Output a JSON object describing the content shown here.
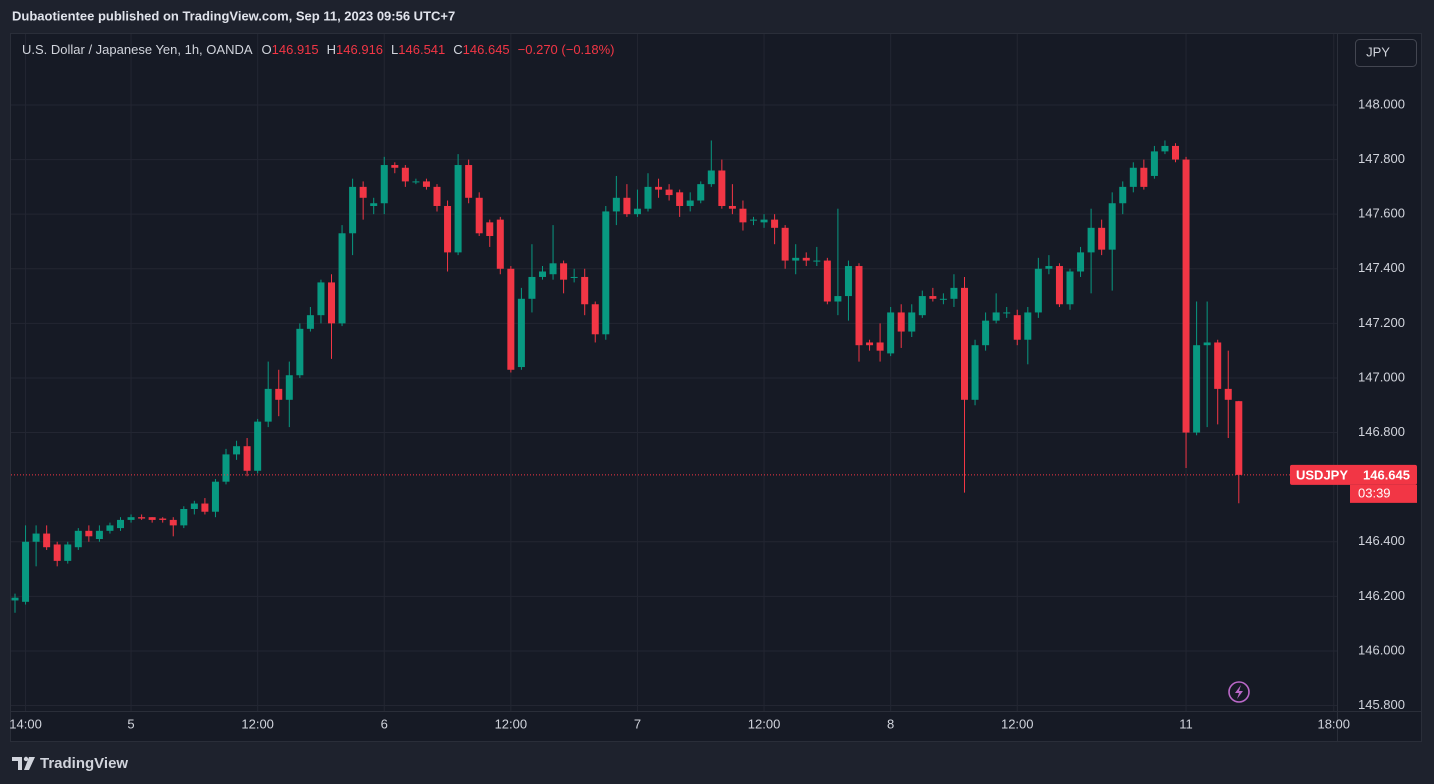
{
  "header": {
    "publisher": "Dubaotientee published on TradingView.com, Sep 11, 2023 09:56 UTC+7"
  },
  "legend": {
    "symbol": "U.S. Dollar / Japanese Yen, 1h, OANDA",
    "labels": [
      "O",
      "H",
      "L",
      "C"
    ],
    "change": "−0.270 (−0.18%)"
  },
  "currency_button": "JPY",
  "price_tag": {
    "symbol": "USDJPY",
    "countdown": "03:39"
  },
  "footer": {
    "brand": "TradingView"
  },
  "chart_data": {
    "type": "candlestick",
    "up_color": "#089981",
    "down_color": "#f23645",
    "grid": true,
    "open": [
      146.185,
      146.18,
      146.4,
      146.43,
      146.39,
      146.33,
      146.38,
      146.44,
      146.41,
      146.44,
      146.45,
      146.48,
      146.49,
      146.49,
      146.485,
      146.48,
      146.46,
      146.52,
      146.54,
      146.51,
      146.62,
      146.72,
      146.75,
      146.66,
      146.84,
      146.96,
      146.92,
      147.01,
      147.18,
      147.23,
      147.35,
      147.2,
      147.53,
      147.7,
      147.63,
      147.64,
      147.78,
      147.77,
      147.72,
      147.72,
      147.7,
      147.63,
      147.46,
      147.78,
      147.66,
      147.57,
      147.58,
      147.4,
      147.04,
      147.29,
      147.37,
      147.38,
      147.42,
      147.37,
      147.37,
      147.27,
      147.16,
      147.61,
      147.66,
      147.6,
      147.62,
      147.7,
      147.69,
      147.68,
      147.63,
      147.65,
      147.71,
      147.76,
      147.63,
      147.62,
      147.58,
      147.57,
      147.58,
      147.55,
      147.43,
      147.44,
      147.43,
      147.43,
      147.28,
      147.3,
      147.41,
      147.13,
      147.13,
      147.09,
      147.24,
      147.17,
      147.23,
      147.3,
      147.29,
      147.29,
      147.33,
      146.92,
      147.12,
      147.21,
      147.24,
      147.23,
      147.14,
      147.24,
      147.4,
      147.41,
      147.27,
      147.39,
      147.46,
      147.55,
      147.47,
      147.64,
      147.7,
      147.77,
      147.74,
      147.83,
      147.85,
      147.8,
      146.8,
      147.12,
      147.13,
      146.96,
      146.915
    ],
    "high": [
      146.21,
      146.46,
      146.46,
      146.46,
      146.4,
      146.4,
      146.45,
      146.46,
      146.46,
      146.47,
      146.49,
      146.5,
      146.5,
      146.49,
      146.49,
      146.49,
      146.53,
      146.55,
      146.56,
      146.63,
      146.74,
      146.77,
      146.78,
      146.85,
      147.06,
      147.03,
      147.06,
      147.2,
      147.26,
      147.36,
      147.38,
      147.56,
      147.73,
      147.72,
      147.66,
      147.81,
      147.79,
      147.78,
      147.73,
      147.73,
      147.71,
      147.65,
      147.82,
      147.8,
      147.68,
      147.58,
      147.59,
      147.41,
      147.33,
      147.49,
      147.41,
      147.56,
      147.43,
      147.4,
      147.4,
      147.28,
      147.63,
      147.74,
      147.71,
      147.69,
      147.75,
      147.73,
      147.71,
      147.69,
      147.68,
      147.72,
      147.87,
      147.8,
      147.71,
      147.65,
      147.59,
      147.6,
      147.6,
      147.56,
      147.49,
      147.46,
      147.48,
      147.44,
      147.62,
      147.43,
      147.42,
      147.14,
      147.2,
      147.26,
      147.27,
      147.27,
      147.32,
      147.33,
      147.31,
      147.38,
      147.37,
      147.14,
      147.24,
      147.31,
      147.26,
      147.25,
      147.26,
      147.44,
      147.45,
      147.42,
      147.4,
      147.48,
      147.62,
      147.58,
      147.68,
      147.72,
      147.79,
      147.8,
      147.85,
      147.87,
      147.86,
      147.81,
      147.28,
      147.28,
      147.14,
      147.1,
      146.916
    ],
    "low": [
      146.14,
      146.17,
      146.31,
      146.37,
      146.31,
      146.32,
      146.37,
      146.4,
      146.4,
      146.43,
      146.44,
      146.47,
      146.48,
      146.47,
      146.47,
      146.42,
      146.45,
      146.5,
      146.5,
      146.49,
      146.61,
      146.7,
      146.64,
      146.65,
      146.82,
      146.86,
      146.82,
      147.0,
      147.17,
      147.2,
      147.07,
      147.19,
      147.45,
      147.58,
      147.6,
      147.6,
      147.75,
      147.7,
      147.71,
      147.69,
      147.61,
      147.39,
      147.45,
      147.64,
      147.52,
      147.48,
      147.38,
      147.02,
      147.03,
      147.24,
      147.36,
      147.36,
      147.31,
      147.35,
      147.23,
      147.13,
      147.14,
      147.56,
      147.59,
      147.59,
      147.61,
      147.66,
      147.65,
      147.59,
      147.61,
      147.64,
      147.7,
      147.62,
      147.6,
      147.54,
      147.56,
      147.55,
      147.49,
      147.4,
      147.38,
      147.41,
      147.41,
      147.27,
      147.23,
      147.21,
      147.06,
      147.1,
      147.06,
      147.08,
      147.11,
      147.15,
      147.22,
      147.28,
      147.27,
      147.26,
      146.58,
      146.9,
      147.1,
      147.2,
      147.22,
      147.12,
      147.05,
      147.22,
      147.38,
      147.26,
      147.25,
      147.37,
      147.31,
      147.45,
      147.32,
      147.6,
      147.68,
      147.69,
      147.73,
      147.82,
      147.79,
      146.67,
      146.79,
      146.82,
      146.83,
      146.78,
      146.541
    ],
    "close": [
      146.195,
      146.4,
      146.43,
      146.38,
      146.33,
      146.39,
      146.44,
      146.42,
      146.44,
      146.46,
      146.48,
      146.49,
      146.485,
      146.48,
      146.48,
      146.46,
      146.52,
      146.54,
      146.51,
      146.62,
      146.72,
      146.75,
      146.66,
      146.84,
      146.96,
      146.92,
      147.01,
      147.18,
      147.23,
      147.35,
      147.2,
      147.53,
      147.7,
      147.66,
      147.64,
      147.78,
      147.77,
      147.72,
      147.72,
      147.7,
      147.63,
      147.46,
      147.78,
      147.66,
      147.53,
      147.52,
      147.4,
      147.03,
      147.29,
      147.37,
      147.39,
      147.42,
      147.36,
      147.37,
      147.27,
      147.16,
      147.61,
      147.66,
      147.6,
      147.62,
      147.7,
      147.69,
      147.67,
      147.63,
      147.65,
      147.71,
      147.76,
      147.63,
      147.62,
      147.57,
      147.58,
      147.58,
      147.55,
      147.43,
      147.44,
      147.43,
      147.43,
      147.28,
      147.3,
      147.41,
      147.12,
      147.12,
      147.1,
      147.24,
      147.17,
      147.24,
      147.3,
      147.29,
      147.29,
      147.33,
      146.92,
      147.12,
      147.21,
      147.24,
      147.24,
      147.14,
      147.24,
      147.4,
      147.41,
      147.27,
      147.39,
      147.46,
      147.55,
      147.47,
      147.64,
      147.7,
      147.77,
      147.7,
      147.83,
      147.85,
      147.8,
      146.8,
      147.12,
      147.13,
      146.96,
      146.92,
      146.645
    ],
    "ylim": [
      145.78,
      148.26
    ],
    "yticks": [
      {
        "value": 145.8,
        "label": "145.800"
      },
      {
        "value": 146,
        "label": "146.000"
      },
      {
        "value": 146.2,
        "label": "146.200"
      },
      {
        "value": 146.4,
        "label": "146.400"
      },
      {
        "value": 146.8,
        "label": "146.800"
      },
      {
        "value": 147,
        "label": "147.000"
      },
      {
        "value": 147.2,
        "label": "147.200"
      },
      {
        "value": 147.4,
        "label": "147.400"
      },
      {
        "value": 147.6,
        "label": "147.600"
      },
      {
        "value": 147.8,
        "label": "147.800"
      },
      {
        "value": 148,
        "label": "148.000"
      }
    ],
    "xticks": [
      {
        "value": 1,
        "label": "14:00"
      },
      {
        "value": 11,
        "label": "5"
      },
      {
        "value": 23,
        "label": "12:00"
      },
      {
        "value": 35,
        "label": "6"
      },
      {
        "value": 47,
        "label": "12:00"
      },
      {
        "value": 59,
        "label": "7"
      },
      {
        "value": 71,
        "label": "12:00"
      },
      {
        "value": 83,
        "label": "8"
      },
      {
        "value": 95,
        "label": "12:00"
      },
      {
        "value": 111,
        "label": "11"
      },
      {
        "value": 125,
        "label": "18:00"
      }
    ]
  }
}
